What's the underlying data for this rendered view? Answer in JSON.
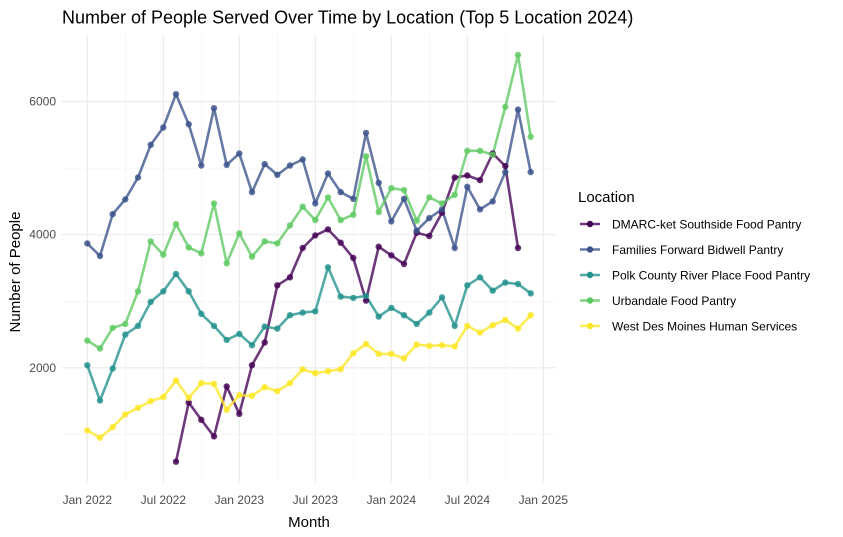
{
  "chart_data": {
    "type": "line",
    "title": "Number of People Served Over Time by Location (Top 5 Location 2024)",
    "xlabel": "Month",
    "ylabel": "Number of People",
    "x_ticks": [
      {
        "date": "2022-01",
        "label": "Jan 2022"
      },
      {
        "date": "2022-07",
        "label": "Jul 2022"
      },
      {
        "date": "2023-01",
        "label": "Jan 2023"
      },
      {
        "date": "2023-07",
        "label": "Jul 2023"
      },
      {
        "date": "2024-01",
        "label": "Jan 2024"
      },
      {
        "date": "2024-07",
        "label": "Jul 2024"
      },
      {
        "date": "2025-01",
        "label": "Jan 2025"
      }
    ],
    "y_ticks": [
      {
        "value": 2000,
        "label": "2000"
      },
      {
        "value": 4000,
        "label": "4000"
      },
      {
        "value": 6000,
        "label": "6000"
      }
    ],
    "xlim": [
      "2021-11",
      "2025-02"
    ],
    "ylim": [
      270,
      7000
    ],
    "grid": true,
    "legend": {
      "title": "Location",
      "position": "right"
    },
    "series": [
      {
        "name": "DMARC-ket Southside Food Pantry",
        "color": "#440154",
        "x": [
          "2022-08",
          "2022-09",
          "2022-10",
          "2022-11",
          "2022-12",
          "2023-01",
          "2023-02",
          "2023-03",
          "2023-04",
          "2023-05",
          "2023-06",
          "2023-07",
          "2023-08",
          "2023-09",
          "2023-10",
          "2023-11",
          "2023-12",
          "2024-01",
          "2024-02",
          "2024-03",
          "2024-04",
          "2024-05",
          "2024-06",
          "2024-07",
          "2024-08",
          "2024-09",
          "2024-10",
          "2024-11",
          "2024-12"
        ],
        "y": [
          590,
          1480,
          1220,
          970,
          1720,
          1310,
          2040,
          2380,
          3240,
          3360,
          3800,
          3990,
          4080,
          3880,
          3650,
          3010,
          3820,
          3690,
          3560,
          4030,
          3980,
          4330,
          4860,
          4890,
          4820,
          5220,
          5030,
          3800,
          null
        ]
      },
      {
        "name": "Families Forward Bidwell Pantry",
        "color": "#3b528b",
        "x": [
          "2022-01",
          "2022-02",
          "2022-03",
          "2022-04",
          "2022-05",
          "2022-06",
          "2022-07",
          "2022-08",
          "2022-09",
          "2022-10",
          "2022-11",
          "2022-12",
          "2023-01",
          "2023-02",
          "2023-03",
          "2023-04",
          "2023-05",
          "2023-06",
          "2023-07",
          "2023-08",
          "2023-09",
          "2023-10",
          "2023-11",
          "2023-12",
          "2024-01",
          "2024-02",
          "2024-03",
          "2024-04",
          "2024-05",
          "2024-06",
          "2024-07",
          "2024-08",
          "2024-09",
          "2024-10",
          "2024-11",
          "2024-12"
        ],
        "y": [
          3870,
          3680,
          4310,
          4530,
          4860,
          5350,
          5610,
          6110,
          5660,
          5040,
          5900,
          5050,
          5220,
          4640,
          5060,
          4900,
          5040,
          5130,
          4470,
          4920,
          4640,
          4540,
          5530,
          4780,
          4200,
          4540,
          4060,
          4250,
          4380,
          3800,
          4720,
          4380,
          4500,
          4940,
          5880,
          4940
        ]
      },
      {
        "name": "Polk County River Place Food Pantry",
        "color": "#21918c",
        "x": [
          "2022-01",
          "2022-02",
          "2022-03",
          "2022-04",
          "2022-05",
          "2022-06",
          "2022-07",
          "2022-08",
          "2022-09",
          "2022-10",
          "2022-11",
          "2022-12",
          "2023-01",
          "2023-02",
          "2023-03",
          "2023-04",
          "2023-05",
          "2023-06",
          "2023-07",
          "2023-08",
          "2023-09",
          "2023-10",
          "2023-11",
          "2023-12",
          "2024-01",
          "2024-02",
          "2024-03",
          "2024-04",
          "2024-05",
          "2024-06",
          "2024-07",
          "2024-08",
          "2024-09",
          "2024-10",
          "2024-11",
          "2024-12"
        ],
        "y": [
          2040,
          1510,
          1990,
          2500,
          2630,
          2990,
          3150,
          3410,
          3150,
          2810,
          2630,
          2420,
          2510,
          2340,
          2620,
          2590,
          2790,
          2830,
          2850,
          3510,
          3070,
          3050,
          3080,
          2770,
          2900,
          2790,
          2660,
          2830,
          3060,
          2630,
          3240,
          3360,
          3160,
          3280,
          3260,
          3120
        ]
      },
      {
        "name": "Urbandale Food Pantry",
        "color": "#5ec962",
        "x": [
          "2022-01",
          "2022-02",
          "2022-03",
          "2022-04",
          "2022-05",
          "2022-06",
          "2022-07",
          "2022-08",
          "2022-09",
          "2022-10",
          "2022-11",
          "2022-12",
          "2023-01",
          "2023-02",
          "2023-03",
          "2023-04",
          "2023-05",
          "2023-06",
          "2023-07",
          "2023-08",
          "2023-09",
          "2023-10",
          "2023-11",
          "2023-12",
          "2024-01",
          "2024-02",
          "2024-03",
          "2024-04",
          "2024-05",
          "2024-06",
          "2024-07",
          "2024-08",
          "2024-09",
          "2024-10",
          "2024-11",
          "2024-12"
        ],
        "y": [
          2410,
          2290,
          2600,
          2660,
          3150,
          3900,
          3700,
          4160,
          3810,
          3720,
          4470,
          3570,
          4020,
          3670,
          3900,
          3870,
          4140,
          4420,
          4220,
          4560,
          4220,
          4300,
          5180,
          4340,
          4700,
          4670,
          4210,
          4560,
          4470,
          4600,
          5260,
          5260,
          5200,
          5920,
          6700,
          5470
        ]
      },
      {
        "name": "West Des Moines Human Services",
        "color": "#fde725",
        "x": [
          "2022-01",
          "2022-02",
          "2022-03",
          "2022-04",
          "2022-05",
          "2022-06",
          "2022-07",
          "2022-08",
          "2022-09",
          "2022-10",
          "2022-11",
          "2022-12",
          "2023-01",
          "2023-02",
          "2023-03",
          "2023-04",
          "2023-05",
          "2023-06",
          "2023-07",
          "2023-08",
          "2023-09",
          "2023-10",
          "2023-11",
          "2023-12",
          "2024-01",
          "2024-02",
          "2024-03",
          "2024-04",
          "2024-05",
          "2024-06",
          "2024-07",
          "2024-08",
          "2024-09",
          "2024-10",
          "2024-11",
          "2024-12"
        ],
        "y": [
          1060,
          950,
          1110,
          1300,
          1400,
          1500,
          1560,
          1810,
          1550,
          1770,
          1760,
          1370,
          1590,
          1580,
          1710,
          1650,
          1770,
          1980,
          1920,
          1950,
          1980,
          2220,
          2360,
          2210,
          2210,
          2140,
          2350,
          2330,
          2340,
          2320,
          2630,
          2530,
          2640,
          2720,
          2590,
          2790
        ]
      }
    ]
  }
}
